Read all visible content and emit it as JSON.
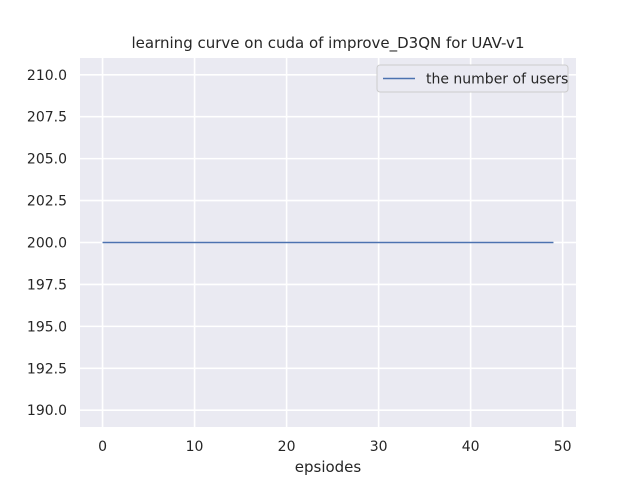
{
  "chart_data": {
    "type": "line",
    "title": "learning curve on cuda of improve_D3QN for UAV-v1",
    "xlabel": "epsiodes",
    "ylabel": "",
    "xlim": [
      -2.45,
      51.45
    ],
    "ylim": [
      189.0,
      211.0
    ],
    "xticks": [
      0,
      10,
      20,
      30,
      40,
      50
    ],
    "yticks": [
      190.0,
      192.5,
      195.0,
      197.5,
      200.0,
      202.5,
      205.0,
      207.5,
      210.0
    ],
    "xtick_labels": [
      "0",
      "10",
      "20",
      "30",
      "40",
      "50"
    ],
    "ytick_labels": [
      "190.0",
      "192.5",
      "195.0",
      "197.5",
      "200.0",
      "202.5",
      "205.0",
      "207.5",
      "210.0"
    ],
    "grid": true,
    "legend_position": "top-right",
    "background_color": "#eaeaf2",
    "grid_color": "#ffffff",
    "series": [
      {
        "name": "the number of users",
        "color": "#4c72b0",
        "x": [
          0,
          49
        ],
        "y": [
          200,
          200
        ]
      }
    ]
  }
}
